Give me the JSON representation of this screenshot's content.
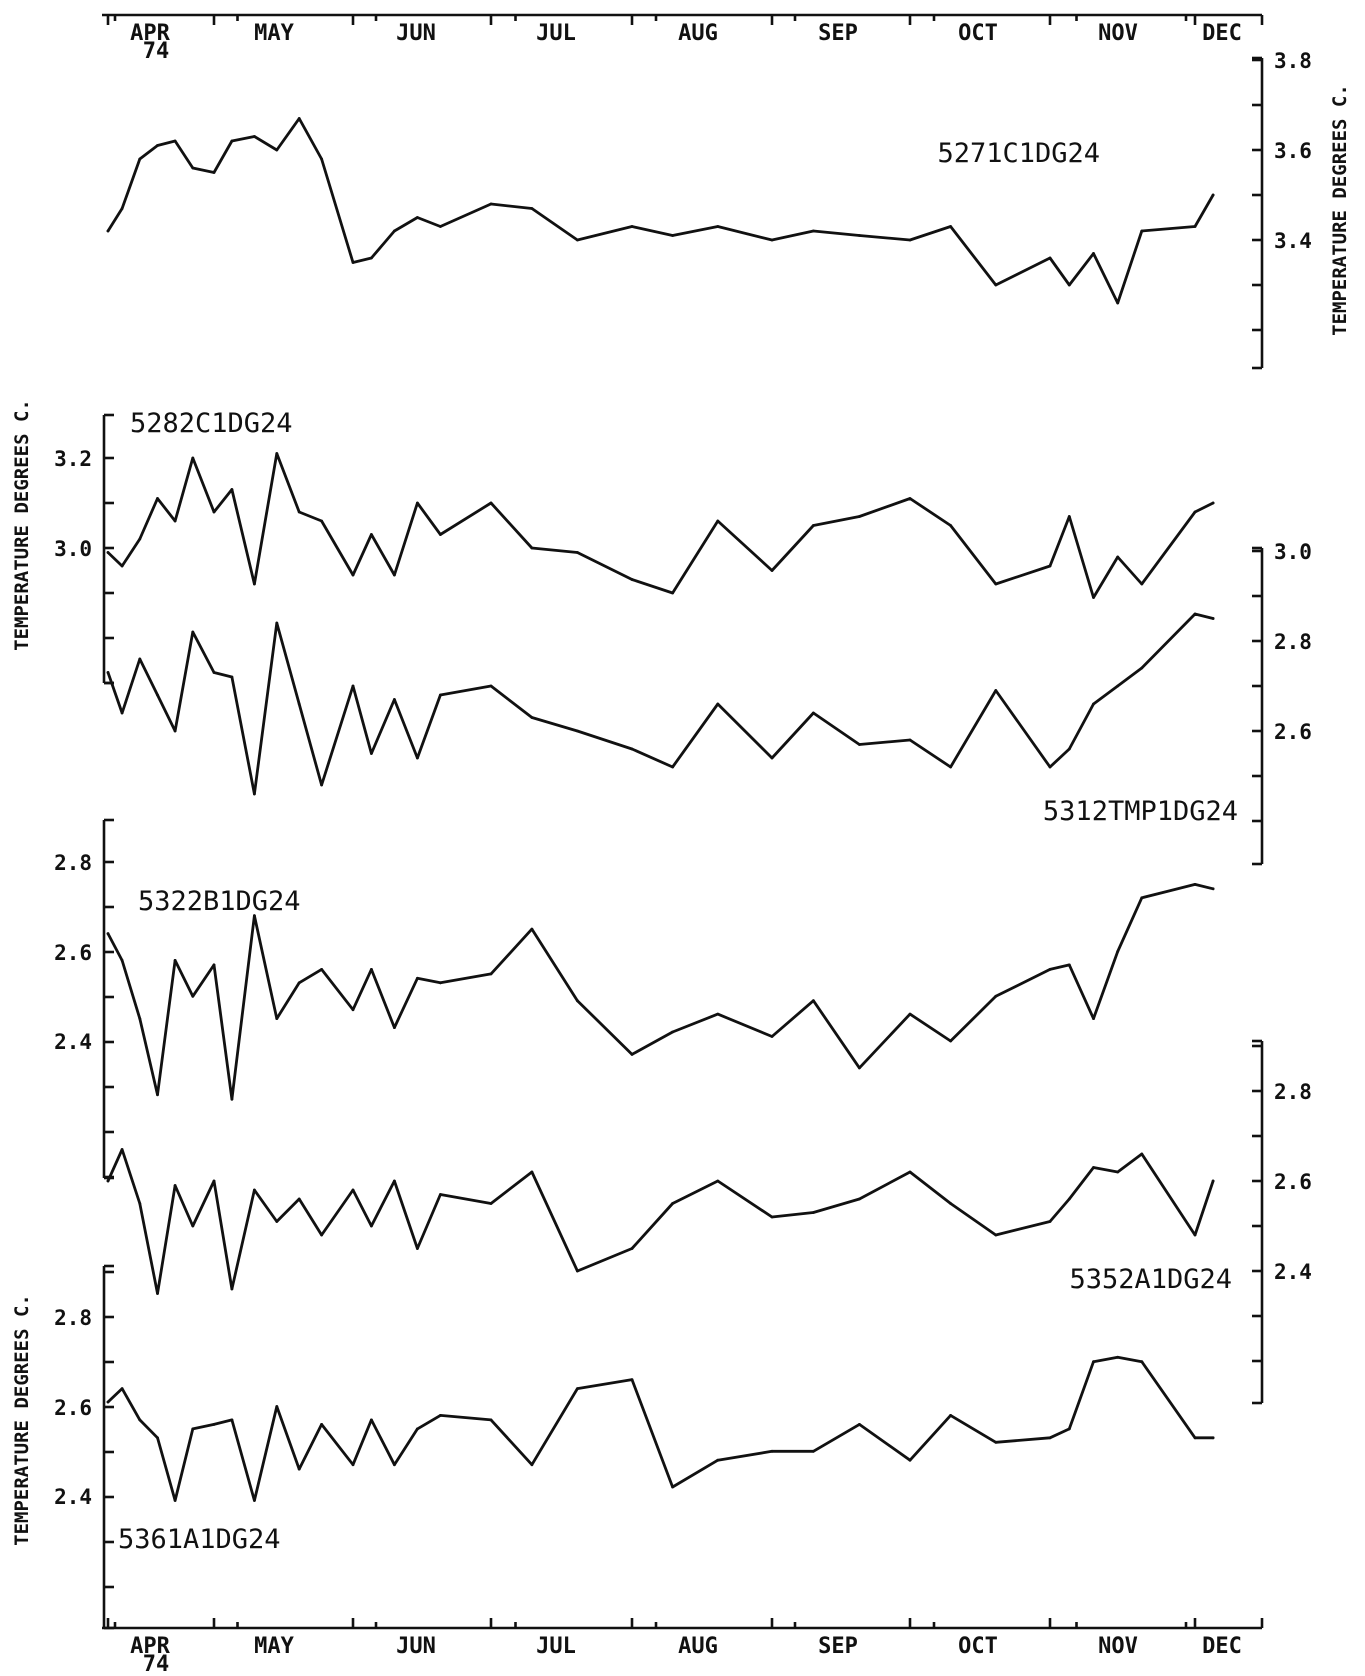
{
  "chart_data": {
    "type": "line",
    "time_axis": {
      "months": [
        "APR",
        "MAY",
        "JUN",
        "JUL",
        "AUG",
        "SEP",
        "OCT",
        "NOV",
        "DEC"
      ],
      "year_label": "74"
    },
    "y_axis_title": "TEMPERATURE DEGREES C.",
    "panels": [
      {
        "label": "5271C1DG24",
        "axis_side": "right",
        "ylim": [
          3.1,
          3.8
        ],
        "ticks": [
          "3.8",
          "3.6",
          "3.4"
        ],
        "x": [
          "Apr 1",
          "Apr 5",
          "Apr 10",
          "Apr 15",
          "Apr 20",
          "Apr 25",
          "May 1",
          "May 5",
          "May 10",
          "May 15",
          "May 20",
          "May 25",
          "Jun 1",
          "Jun 5",
          "Jun 10",
          "Jun 15",
          "Jun 20",
          "Jul 1",
          "Jul 10",
          "Jul 20",
          "Aug 1",
          "Aug 10",
          "Aug 20",
          "Sep 1",
          "Sep 10",
          "Sep 20",
          "Oct 1",
          "Oct 10",
          "Oct 20",
          "Nov 1",
          "Nov 5",
          "Nov 10",
          "Nov 15",
          "Nov 20",
          "Dec 1",
          "Dec 5"
        ],
        "values": [
          3.42,
          3.47,
          3.58,
          3.61,
          3.62,
          3.56,
          3.55,
          3.62,
          3.63,
          3.6,
          3.67,
          3.58,
          3.35,
          3.36,
          3.42,
          3.45,
          3.43,
          3.48,
          3.47,
          3.4,
          3.43,
          3.41,
          3.43,
          3.4,
          3.42,
          3.41,
          3.4,
          3.43,
          3.3,
          3.36,
          3.3,
          3.37,
          3.26,
          3.42,
          3.43,
          3.5
        ]
      },
      {
        "label": "5282C1DG24",
        "axis_side": "left",
        "ylim": [
          2.7,
          3.3
        ],
        "ticks": [
          "3.2",
          "3.0"
        ],
        "x": [
          "Apr 1",
          "Apr 5",
          "Apr 10",
          "Apr 15",
          "Apr 20",
          "Apr 25",
          "May 1",
          "May 5",
          "May 10",
          "May 15",
          "May 20",
          "May 25",
          "Jun 1",
          "Jun 5",
          "Jun 10",
          "Jun 15",
          "Jun 20",
          "Jul 1",
          "Jul 10",
          "Jul 20",
          "Aug 1",
          "Aug 10",
          "Aug 20",
          "Sep 1",
          "Sep 10",
          "Sep 20",
          "Oct 1",
          "Oct 10",
          "Oct 20",
          "Nov 1",
          "Nov 5",
          "Nov 10",
          "Nov 15",
          "Nov 20",
          "Dec 1",
          "Dec 5"
        ],
        "values": [
          2.99,
          2.96,
          3.02,
          3.11,
          3.06,
          3.2,
          3.08,
          3.13,
          2.92,
          3.21,
          3.08,
          3.06,
          2.94,
          3.03,
          2.94,
          3.1,
          3.03,
          3.1,
          3.0,
          2.99,
          2.93,
          2.9,
          3.06,
          2.95,
          3.05,
          3.07,
          3.11,
          3.05,
          2.92,
          2.96,
          3.07,
          2.89,
          2.98,
          2.92,
          3.08,
          3.1
        ]
      },
      {
        "label": "5312TMP1DG24",
        "axis_side": "right",
        "ylim": [
          2.4,
          3.0
        ],
        "ticks": [
          "3.0",
          "2.8",
          "2.6"
        ],
        "x": [
          "Apr 1",
          "Apr 5",
          "Apr 10",
          "Apr 15",
          "Apr 20",
          "Apr 25",
          "May 1",
          "May 5",
          "May 10",
          "May 15",
          "May 20",
          "May 25",
          "Jun 1",
          "Jun 5",
          "Jun 10",
          "Jun 15",
          "Jun 20",
          "Jul 1",
          "Jul 10",
          "Jul 20",
          "Aug 1",
          "Aug 10",
          "Aug 20",
          "Sep 1",
          "Sep 10",
          "Sep 20",
          "Oct 1",
          "Oct 10",
          "Oct 20",
          "Nov 1",
          "Nov 5",
          "Nov 10",
          "Nov 15",
          "Nov 20",
          "Dec 1",
          "Dec 5"
        ],
        "values": [
          2.73,
          2.64,
          2.76,
          2.68,
          2.6,
          2.82,
          2.73,
          2.72,
          2.46,
          2.84,
          2.66,
          2.48,
          2.7,
          2.55,
          2.67,
          2.54,
          2.68,
          2.7,
          2.63,
          2.6,
          2.56,
          2.52,
          2.66,
          2.54,
          2.64,
          2.57,
          2.58,
          2.52,
          2.69,
          2.52,
          2.56,
          2.66,
          2.7,
          2.74,
          2.86,
          2.85
        ]
      },
      {
        "label": "5322B1DG24",
        "axis_side": "left",
        "ylim": [
          2.1,
          2.9
        ],
        "ticks": [
          "2.8",
          "2.6",
          "2.4"
        ],
        "x": [
          "Apr 1",
          "Apr 5",
          "Apr 10",
          "Apr 15",
          "Apr 20",
          "Apr 25",
          "May 1",
          "May 5",
          "May 10",
          "May 15",
          "May 20",
          "May 25",
          "Jun 1",
          "Jun 5",
          "Jun 10",
          "Jun 15",
          "Jun 20",
          "Jul 1",
          "Jul 10",
          "Jul 20",
          "Aug 1",
          "Aug 10",
          "Aug 20",
          "Sep 1",
          "Sep 10",
          "Sep 20",
          "Oct 1",
          "Oct 10",
          "Oct 20",
          "Nov 1",
          "Nov 5",
          "Nov 10",
          "Nov 15",
          "Nov 20",
          "Dec 1",
          "Dec 5"
        ],
        "values": [
          2.64,
          2.58,
          2.45,
          2.28,
          2.58,
          2.5,
          2.57,
          2.27,
          2.68,
          2.45,
          2.53,
          2.56,
          2.47,
          2.56,
          2.43,
          2.54,
          2.53,
          2.55,
          2.65,
          2.49,
          2.37,
          2.42,
          2.46,
          2.41,
          2.49,
          2.34,
          2.46,
          2.4,
          2.5,
          2.56,
          2.57,
          2.45,
          2.6,
          2.72,
          2.75,
          2.74
        ]
      },
      {
        "label": "5352A1DG24",
        "axis_side": "right",
        "ylim": [
          2.1,
          2.9
        ],
        "ticks": [
          "2.8",
          "2.6",
          "2.4"
        ],
        "x": [
          "Apr 1",
          "Apr 5",
          "Apr 10",
          "Apr 15",
          "Apr 20",
          "Apr 25",
          "May 1",
          "May 5",
          "May 10",
          "May 15",
          "May 20",
          "May 25",
          "Jun 1",
          "Jun 5",
          "Jun 10",
          "Jun 15",
          "Jun 20",
          "Jul 1",
          "Jul 10",
          "Jul 20",
          "Aug 1",
          "Aug 10",
          "Aug 20",
          "Sep 1",
          "Sep 10",
          "Sep 20",
          "Oct 1",
          "Oct 10",
          "Oct 20",
          "Nov 1",
          "Nov 5",
          "Nov 10",
          "Nov 15",
          "Nov 20",
          "Dec 1",
          "Dec 5"
        ],
        "values": [
          2.6,
          2.67,
          2.55,
          2.35,
          2.59,
          2.5,
          2.6,
          2.36,
          2.58,
          2.51,
          2.56,
          2.48,
          2.58,
          2.5,
          2.6,
          2.45,
          2.57,
          2.55,
          2.62,
          2.4,
          2.45,
          2.55,
          2.6,
          2.52,
          2.53,
          2.56,
          2.62,
          2.55,
          2.48,
          2.51,
          2.56,
          2.63,
          2.62,
          2.66,
          2.48,
          2.6
        ]
      },
      {
        "label": "5361A1DG24",
        "axis_side": "left",
        "ylim": [
          2.2,
          2.9
        ],
        "ticks": [
          "2.8",
          "2.6",
          "2.4"
        ],
        "x": [
          "Apr 1",
          "Apr 5",
          "Apr 10",
          "Apr 15",
          "Apr 20",
          "Apr 25",
          "May 1",
          "May 5",
          "May 10",
          "May 15",
          "May 20",
          "May 25",
          "Jun 1",
          "Jun 5",
          "Jun 10",
          "Jun 15",
          "Jun 20",
          "Jul 1",
          "Jul 10",
          "Jul 20",
          "Aug 1",
          "Aug 10",
          "Aug 20",
          "Sep 1",
          "Sep 10",
          "Sep 20",
          "Oct 1",
          "Oct 10",
          "Oct 20",
          "Nov 1",
          "Nov 5",
          "Nov 10",
          "Nov 15",
          "Nov 20",
          "Dec 1",
          "Dec 5"
        ],
        "values": [
          2.61,
          2.64,
          2.57,
          2.53,
          2.39,
          2.55,
          2.56,
          2.57,
          2.39,
          2.6,
          2.46,
          2.56,
          2.47,
          2.57,
          2.47,
          2.55,
          2.58,
          2.57,
          2.47,
          2.64,
          2.66,
          2.42,
          2.48,
          2.5,
          2.5,
          2.56,
          2.48,
          2.58,
          2.52,
          2.53,
          2.55,
          2.7,
          2.71,
          2.7,
          2.53,
          2.53
        ]
      }
    ]
  }
}
